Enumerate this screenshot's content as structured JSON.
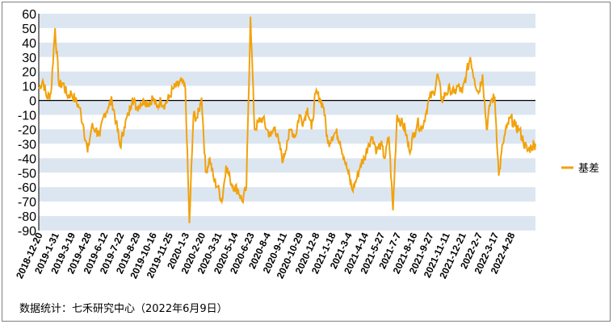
{
  "chart_data": {
    "type": "line",
    "title": "",
    "xlabel": "",
    "ylabel": "",
    "ylim": [
      -90,
      60
    ],
    "yticks": [
      60,
      50,
      40,
      30,
      20,
      10,
      0,
      -10,
      -20,
      -30,
      -40,
      -50,
      -60,
      -70,
      -80,
      -90
    ],
    "x_tick_labels": [
      "2018-12-20",
      "2019-1-31",
      "2019-3-19",
      "2019-4-28",
      "2019-6-12",
      "2019-7-22",
      "2019-8-29",
      "2019-10-16",
      "2019-11-25",
      "2020-1-3",
      "2020-2-20",
      "2020-3-31",
      "2020-5-14",
      "2020-6-23",
      "2020-8-4",
      "2020-9-11",
      "2020-10-29",
      "2020-12-8",
      "2021-1-18",
      "2021-3-4",
      "2021-4-14",
      "2021-5-27",
      "2021-7-7",
      "2021-8-16",
      "2021-9-27",
      "2021-11-11",
      "2021-12-21",
      "2022-2-7",
      "2022-3-17",
      "2022-4-28"
    ],
    "grid": "alternating horizontal bands",
    "legend_position": "right",
    "series": [
      {
        "name": "基差",
        "color": "#F2A20C",
        "points": [
          [
            0,
            8
          ],
          [
            0.25,
            14
          ],
          [
            0.5,
            2
          ],
          [
            0.75,
            5
          ],
          [
            1.0,
            50
          ],
          [
            1.25,
            10
          ],
          [
            1.5,
            12
          ],
          [
            1.75,
            3
          ],
          [
            2.0,
            5
          ],
          [
            2.25,
            0
          ],
          [
            2.5,
            -5
          ],
          [
            2.75,
            -18
          ],
          [
            3.0,
            -36
          ],
          [
            3.25,
            -18
          ],
          [
            3.5,
            -20
          ],
          [
            3.75,
            -25
          ],
          [
            4.0,
            -10
          ],
          [
            4.25,
            -5
          ],
          [
            4.5,
            0
          ],
          [
            4.75,
            -15
          ],
          [
            5.0,
            -32
          ],
          [
            5.25,
            -18
          ],
          [
            5.5,
            -10
          ],
          [
            5.75,
            2
          ],
          [
            6.0,
            -5
          ],
          [
            6.25,
            -2
          ],
          [
            6.5,
            0
          ],
          [
            6.75,
            -2
          ],
          [
            7.0,
            2
          ],
          [
            7.25,
            -5
          ],
          [
            7.5,
            0
          ],
          [
            7.75,
            -3
          ],
          [
            8.0,
            2
          ],
          [
            8.25,
            8
          ],
          [
            8.5,
            10
          ],
          [
            8.75,
            13
          ],
          [
            9.0,
            8
          ],
          [
            9.25,
            -85
          ],
          [
            9.5,
            -10
          ],
          [
            9.75,
            -12
          ],
          [
            10.0,
            2
          ],
          [
            10.25,
            -50
          ],
          [
            10.5,
            -40
          ],
          [
            10.75,
            -55
          ],
          [
            11.0,
            -60
          ],
          [
            11.25,
            -70
          ],
          [
            11.5,
            -45
          ],
          [
            11.75,
            -55
          ],
          [
            12.0,
            -60
          ],
          [
            12.25,
            -62
          ],
          [
            12.5,
            -70
          ],
          [
            12.75,
            -60
          ],
          [
            13.0,
            58
          ],
          [
            13.25,
            -20
          ],
          [
            13.5,
            -15
          ],
          [
            13.75,
            -12
          ],
          [
            14.0,
            -20
          ],
          [
            14.25,
            -25
          ],
          [
            14.5,
            -18
          ],
          [
            14.75,
            -30
          ],
          [
            15.0,
            -42
          ],
          [
            15.25,
            -28
          ],
          [
            15.5,
            -20
          ],
          [
            15.75,
            -25
          ],
          [
            16.0,
            -10
          ],
          [
            16.25,
            -15
          ],
          [
            16.5,
            -5
          ],
          [
            16.75,
            -20
          ],
          [
            17.0,
            5
          ],
          [
            17.25,
            2
          ],
          [
            17.5,
            -5
          ],
          [
            17.75,
            -30
          ],
          [
            18.0,
            -25
          ],
          [
            18.25,
            -22
          ],
          [
            18.5,
            -28
          ],
          [
            18.75,
            -40
          ],
          [
            19.0,
            -50
          ],
          [
            19.25,
            -62
          ],
          [
            19.5,
            -55
          ],
          [
            19.75,
            -45
          ],
          [
            20.0,
            -40
          ],
          [
            20.25,
            -30
          ],
          [
            20.5,
            -25
          ],
          [
            20.75,
            -35
          ],
          [
            21.0,
            -30
          ],
          [
            21.25,
            -40
          ],
          [
            21.5,
            -25
          ],
          [
            21.75,
            -76
          ],
          [
            22.0,
            -10
          ],
          [
            22.25,
            -15
          ],
          [
            22.5,
            -20
          ],
          [
            22.75,
            -35
          ],
          [
            23.0,
            -25
          ],
          [
            23.25,
            -15
          ],
          [
            23.5,
            -20
          ],
          [
            23.75,
            -10
          ],
          [
            24.0,
            2
          ],
          [
            24.25,
            5
          ],
          [
            24.5,
            18
          ],
          [
            24.75,
            0
          ],
          [
            25.0,
            5
          ],
          [
            25.25,
            8
          ],
          [
            25.5,
            5
          ],
          [
            25.75,
            10
          ],
          [
            26.0,
            5
          ],
          [
            26.25,
            18
          ],
          [
            26.5,
            30
          ],
          [
            26.75,
            15
          ],
          [
            27.0,
            5
          ],
          [
            27.25,
            18
          ],
          [
            27.5,
            -20
          ],
          [
            27.75,
            0
          ],
          [
            28.0,
            2
          ],
          [
            28.25,
            -52
          ],
          [
            28.5,
            -30
          ],
          [
            28.75,
            -18
          ],
          [
            29.0,
            -12
          ],
          [
            29.25,
            -18
          ],
          [
            29.5,
            -20
          ],
          [
            29.75,
            -28
          ],
          [
            30.0,
            -35
          ],
          [
            30.25,
            -32
          ],
          [
            30.5,
            -30
          ]
        ]
      }
    ],
    "source_note": "数据统计：七禾研究中心（2022年6月9日）"
  }
}
